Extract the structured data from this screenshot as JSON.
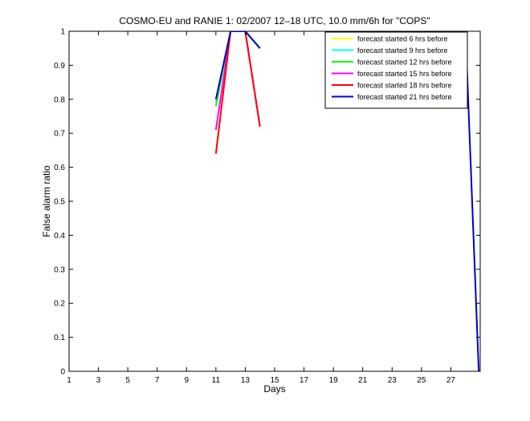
{
  "chart_data": {
    "type": "line",
    "title": "COSMO-EU and RANIE 1: 02/2007 12–18 UTC, 10.0 mm/6h for \"COPS\"",
    "xlabel": "Days",
    "ylabel": "False alarm ratio",
    "xlim": [
      1,
      29
    ],
    "ylim": [
      0,
      1
    ],
    "x_ticks": [
      1,
      3,
      5,
      7,
      9,
      11,
      13,
      15,
      17,
      19,
      21,
      23,
      25,
      27
    ],
    "y_ticks": [
      0,
      0.1,
      0.2,
      0.3,
      0.4,
      0.5,
      0.6,
      0.7,
      0.8,
      0.9,
      1
    ],
    "grid": false,
    "legend_position": "top-right",
    "series": [
      {
        "name": "forecast started 6 hrs before",
        "color": "#ffff00",
        "segments": [
          [
            [
              26.0,
              0.77
            ],
            [
              26.05,
              0.77
            ]
          ]
        ]
      },
      {
        "name": "forecast started 9 hrs before",
        "color": "#00ffff",
        "segments": [
          [
            [
              11.0,
              0.79
            ],
            [
              12.0,
              1.0
            ],
            [
              13.0,
              1.0
            ],
            [
              14.0,
              0.95
            ]
          ],
          [
            [
              25.0,
              1.0
            ],
            [
              26.0,
              0.93
            ]
          ]
        ]
      },
      {
        "name": "forecast started 12 hrs before",
        "color": "#00ff00",
        "segments": [
          [
            [
              11.0,
              0.78
            ],
            [
              12.0,
              1.0
            ],
            [
              13.0,
              1.0
            ],
            [
              14.0,
              0.95
            ]
          ],
          [
            [
              25.0,
              1.0
            ],
            [
              26.0,
              0.94
            ]
          ]
        ]
      },
      {
        "name": "forecast started 15 hrs before",
        "color": "#ff00ff",
        "segments": [
          [
            [
              11.0,
              0.71
            ],
            [
              12.0,
              1.0
            ],
            [
              13.0,
              1.0
            ],
            [
              14.0,
              0.72
            ]
          ],
          [
            [
              25.0,
              1.0
            ],
            [
              26.0,
              0.95
            ]
          ]
        ]
      },
      {
        "name": "forecast started 18 hrs before",
        "color": "#ff0000",
        "segments": [
          [
            [
              11.0,
              0.64
            ],
            [
              12.0,
              1.0
            ],
            [
              13.0,
              1.0
            ],
            [
              14.0,
              0.72
            ]
          ]
        ]
      },
      {
        "name": "forecast started 21 hrs before",
        "color": "#0000cc",
        "segments": [
          [
            [
              11.0,
              0.8
            ],
            [
              12.0,
              1.0
            ],
            [
              13.0,
              1.0
            ],
            [
              14.0,
              0.95
            ]
          ],
          [
            [
              25.0,
              1.0
            ],
            [
              26.0,
              0.92
            ]
          ],
          [
            [
              28.0,
              1.0
            ],
            [
              28.9,
              0.0
            ],
            [
              31.0,
              0.0
            ]
          ]
        ]
      }
    ]
  }
}
